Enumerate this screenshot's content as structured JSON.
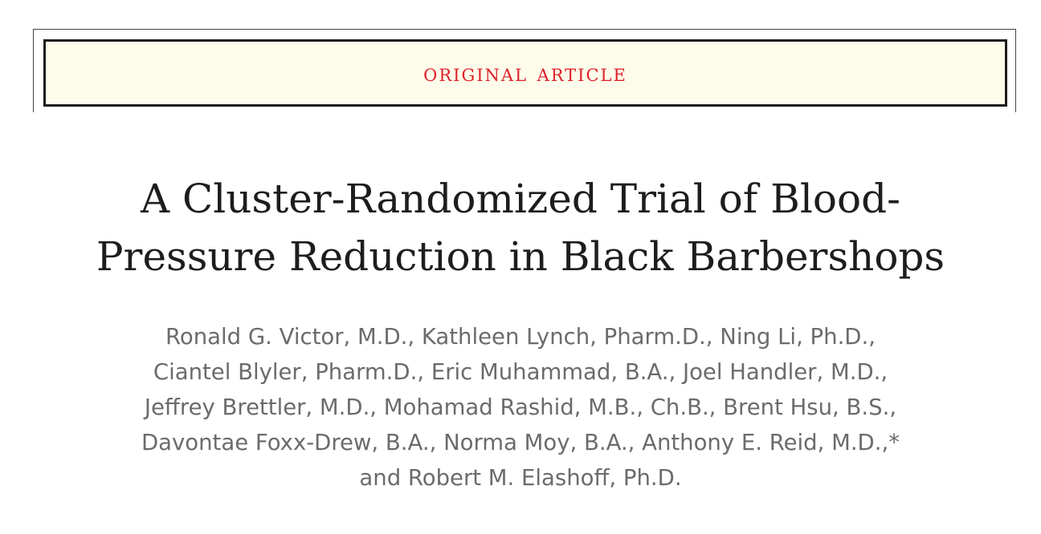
{
  "banner": {
    "label": "ORIGINAL ARTICLE"
  },
  "article": {
    "title_lines": [
      "A Cluster-Randomized Trial of Blood-",
      "Pressure Reduction in Black Barbershops"
    ],
    "author_lines": [
      "Ronald G. Victor, M.D., Kathleen Lynch, Pharm.D., Ning Li, Ph.D.,",
      "Ciantel Blyler, Pharm.D., Eric Muhammad, B.A., Joel Handler, M.D.,",
      "Jeffrey Brettler, M.D., Mohamad Rashid, M.B., Ch.B., Brent Hsu, B.S.,",
      "Davontae Foxx-Drew, B.A., Norma Moy, B.A., Anthony E. Reid, M.D.,*",
      "and Robert M. Elashoff, Ph.D."
    ]
  },
  "colors": {
    "banner_text": "#e0202a",
    "banner_background": "#fdfbea",
    "title_text": "#1d1d1d",
    "author_text": "#6b6b6b"
  }
}
